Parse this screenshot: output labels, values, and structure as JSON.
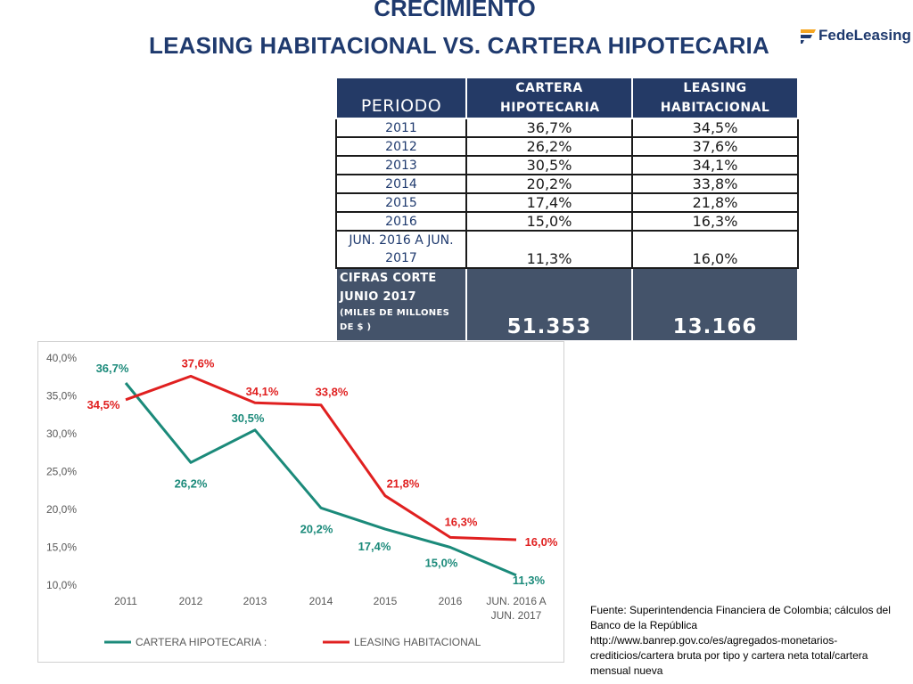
{
  "title": {
    "line1": "CRECIMIENTO",
    "line2": "LEASING HABITACIONAL  VS.  CARTERA HIPOTECARIA"
  },
  "logo": {
    "text": "FedeLeasing"
  },
  "table": {
    "headers": [
      "PERIODO",
      "CARTERA HIPOTECARIA",
      "LEASING HABITACIONAL"
    ],
    "rows": [
      {
        "periodo": "2011",
        "cartera": "36,7%",
        "leasing": "34,5%"
      },
      {
        "periodo": "2012",
        "cartera": "26,2%",
        "leasing": "37,6%"
      },
      {
        "periodo": "2013",
        "cartera": "30,5%",
        "leasing": "34,1%"
      },
      {
        "periodo": "2014",
        "cartera": "20,2%",
        "leasing": "33,8%"
      },
      {
        "periodo": "2015",
        "cartera": "17,4%",
        "leasing": "21,8%"
      },
      {
        "periodo": "2016",
        "cartera": "15,0%",
        "leasing": "16,3%"
      },
      {
        "periodo": "JUN. 2016 A JUN. 2017",
        "cartera": "11,3%",
        "leasing": "16,0%"
      }
    ],
    "footer": {
      "label_line1": "CIFRAS CORTE JUNIO 2017",
      "label_line2": "(MILES DE MILLONES DE $ )",
      "cartera": "51.353",
      "leasing": "13.166"
    }
  },
  "chart_data": {
    "type": "line",
    "categories": [
      "2011",
      "2012",
      "2013",
      "2014",
      "2015",
      "2016",
      "JUN. 2016 A JUN. 2017"
    ],
    "y_ticks": [
      "40,0%",
      "35,0%",
      "30,0%",
      "25,0%",
      "20,0%",
      "15,0%",
      "10,0%"
    ],
    "ylim": [
      10,
      40
    ],
    "series": [
      {
        "name": "CARTERA HIPOTECARIA",
        "legend_label": "CARTERA HIPOTECARIA :",
        "color": "#1b8a7a",
        "values": [
          36.7,
          26.2,
          30.5,
          20.2,
          17.4,
          15.0,
          11.3
        ],
        "labels": [
          "36,7%",
          "26,2%",
          "30,5%",
          "20,2%",
          "17,4%",
          "15,0%",
          "11,3%"
        ]
      },
      {
        "name": "LEASING HABITACIONAL",
        "legend_label": "LEASING HABITACIONAL",
        "color": "#e02020",
        "values": [
          34.5,
          37.6,
          34.1,
          33.8,
          21.8,
          16.3,
          16.0
        ],
        "labels": [
          "34,5%",
          "37,6%",
          "34,1%",
          "33,8%",
          "21,8%",
          "16,3%",
          "16,0%"
        ]
      }
    ],
    "grid": false,
    "legend_position": "bottom"
  },
  "source": "Fuente: Superintendencia Financiera de Colombia; cálculos del Banco de la República\nhttp://www.banrep.gov.co/es/agregados-monetarios-crediticios/cartera bruta por tipo y cartera neta total/cartera mensual nueva"
}
